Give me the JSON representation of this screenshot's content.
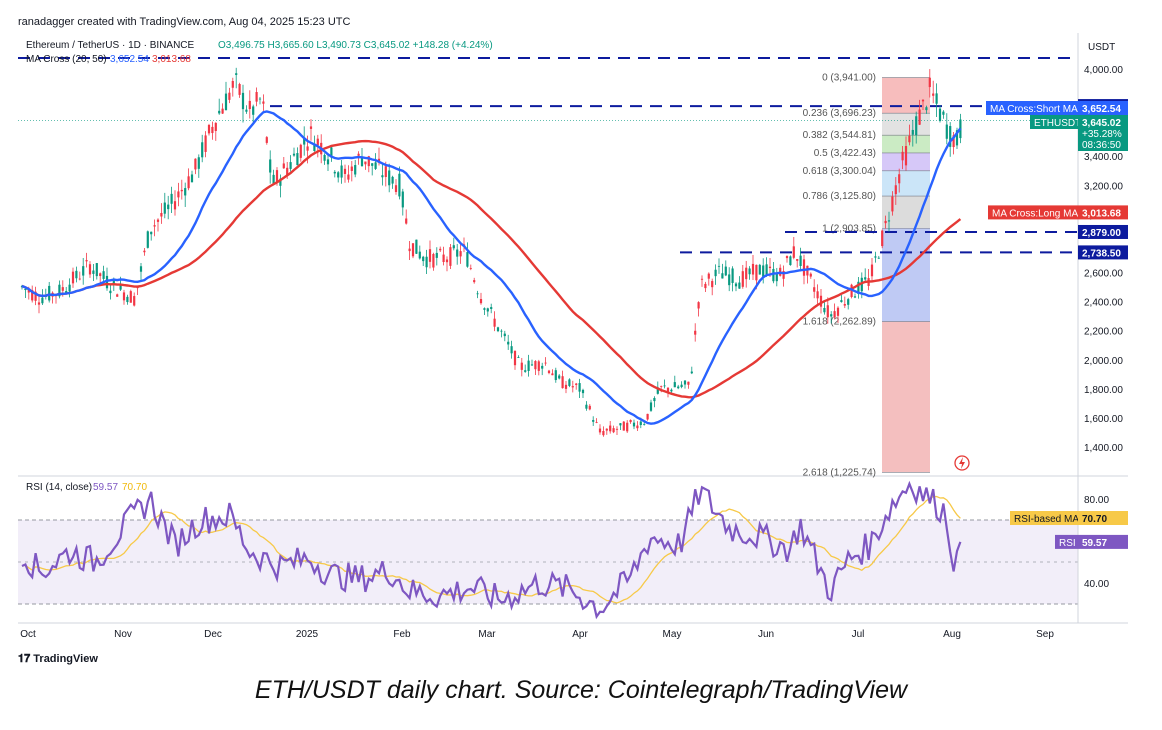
{
  "header": {
    "attribution": "ranadagger created with TradingView.com, Aug 04, 2025 15:23 UTC"
  },
  "legend": {
    "symbol": "Ethereum / TetherUS · 1D · BINANCE",
    "ohlc": "O3,496.75 H3,665.60 L3,490.73 C3,645.02 +148.28 (+4.24%)",
    "ma_label": "MA Cross (20, 50)",
    "ma_short_value": "3,652.54",
    "ma_long_value": "3,013.68",
    "rsi_label": "RSI (14, close)",
    "rsi_value": "59.57",
    "rsi_ma_value": "70.70"
  },
  "axis": {
    "currency": "USDT",
    "price_ticks": [
      "4,000.00",
      "3,600.00",
      "3,400.00",
      "3,200.00",
      "3,000.00",
      "2,600.00",
      "2,400.00",
      "2,200.00",
      "2,000.00",
      "1,800.00",
      "1,600.00",
      "1,400.00"
    ],
    "rsi_ticks": [
      "80.00",
      "40.00"
    ],
    "time_ticks": [
      "Oct",
      "Nov",
      "Dec",
      "2025",
      "Feb",
      "Mar",
      "Apr",
      "May",
      "Jun",
      "Jul",
      "Aug",
      "Sep"
    ]
  },
  "price_tags": {
    "level_3745": "3,745.00",
    "ma_short_label": "MA Cross:Short MA",
    "ma_short": "3,652.54",
    "symbol": "ETHUSDT",
    "last_price": "3,645.02",
    "change": "+35.28%",
    "countdown": "08:36:50",
    "ma_long_label": "MA Cross:Long MA",
    "ma_long": "3,013.68",
    "level_2879": "2,879.00",
    "level_2738": "2,738.50",
    "rsi_ma_label": "RSI-based MA",
    "rsi_ma": "70.70",
    "rsi_label": "RSI",
    "rsi": "59.57"
  },
  "fib_labels": [
    {
      "ratio": "0",
      "text": "0 (3,941.00)",
      "price": 3941.0
    },
    {
      "ratio": "0.236",
      "text": "0.236 (3,696.23)",
      "price": 3696.23
    },
    {
      "ratio": "0.382",
      "text": "0.382 (3,544.81)",
      "price": 3544.81
    },
    {
      "ratio": "0.5",
      "text": "0.5 (3,422.43)",
      "price": 3422.43
    },
    {
      "ratio": "0.618",
      "text": "0.618 (3,300.04)",
      "price": 3300.04
    },
    {
      "ratio": "0.786",
      "text": "0.786 (3,125.80)",
      "price": 3125.8
    },
    {
      "ratio": "1",
      "text": "1 (2,903.85)",
      "price": 2903.85
    },
    {
      "ratio": "1.618",
      "text": "1.618 (2,262.89)",
      "price": 2262.89
    },
    {
      "ratio": "2.618",
      "text": "2.618 (1,225.74)",
      "price": 1225.74
    }
  ],
  "brand": {
    "logo_text": "TradingView"
  },
  "caption": "ETH/USDT daily chart. Source: Cointelegraph/TradingView",
  "colors": {
    "up": "#089981",
    "down": "#f23645",
    "ma_short": "#2962ff",
    "ma_long": "#e53935",
    "rsi": "#7e57c2",
    "rsi_ma": "#f7c948",
    "level_line": "#0d1b9e"
  },
  "chart_data": [
    {
      "type": "candlestick",
      "title": "Ethereum / TetherUS · 1D · BINANCE",
      "ylim": [
        1250,
        4150
      ],
      "horizontal_levels": [
        4080,
        3745.0,
        2879.0,
        2738.5
      ],
      "series": [
        {
          "name": "ETHUSDT",
          "x": [
            "Oct",
            "Nov",
            "Dec",
            "2025",
            "Feb",
            "Mar",
            "Apr",
            "May",
            "Jun",
            "Jul",
            "Aug"
          ],
          "close_approx": [
            2480,
            2500,
            3700,
            3350,
            3300,
            2300,
            1800,
            1850,
            2600,
            2450,
            3645.02
          ]
        },
        {
          "name": "MA Cross:Short MA",
          "x": [
            "Oct",
            "Nov",
            "Dec",
            "2025",
            "Feb",
            "Mar",
            "Apr",
            "May",
            "Jun",
            "Jul",
            "Aug"
          ],
          "values_approx": [
            2500,
            2480,
            3500,
            3400,
            3150,
            2500,
            1850,
            1750,
            2550,
            2500,
            3652.54
          ]
        },
        {
          "name": "MA Cross:Long MA",
          "x": [
            "Oct",
            "Nov",
            "Dec",
            "2025",
            "Feb",
            "Mar",
            "Apr",
            "May",
            "Jun",
            "Jul",
            "Aug"
          ],
          "values_approx": [
            2480,
            2430,
            2900,
            3350,
            3300,
            2800,
            2000,
            1800,
            2300,
            2500,
            3013.68
          ]
        }
      ]
    },
    {
      "type": "line",
      "title": "RSI (14, close)",
      "ylim": [
        20,
        95
      ],
      "bands": [
        30,
        70
      ],
      "series": [
        {
          "name": "RSI",
          "x": [
            "Oct",
            "Nov",
            "Dec",
            "2025",
            "Feb",
            "Mar",
            "Apr",
            "May",
            "Jun",
            "Jul",
            "Aug"
          ],
          "values_approx": [
            55,
            45,
            72,
            50,
            40,
            33,
            35,
            62,
            60,
            50,
            59.57
          ]
        },
        {
          "name": "RSI-based MA",
          "x": [
            "Oct",
            "Nov",
            "Dec",
            "2025",
            "Feb",
            "Mar",
            "Apr",
            "May",
            "Jun",
            "Jul",
            "Aug"
          ],
          "values_approx": [
            52,
            48,
            68,
            55,
            42,
            36,
            37,
            55,
            63,
            48,
            70.7
          ]
        }
      ]
    }
  ]
}
